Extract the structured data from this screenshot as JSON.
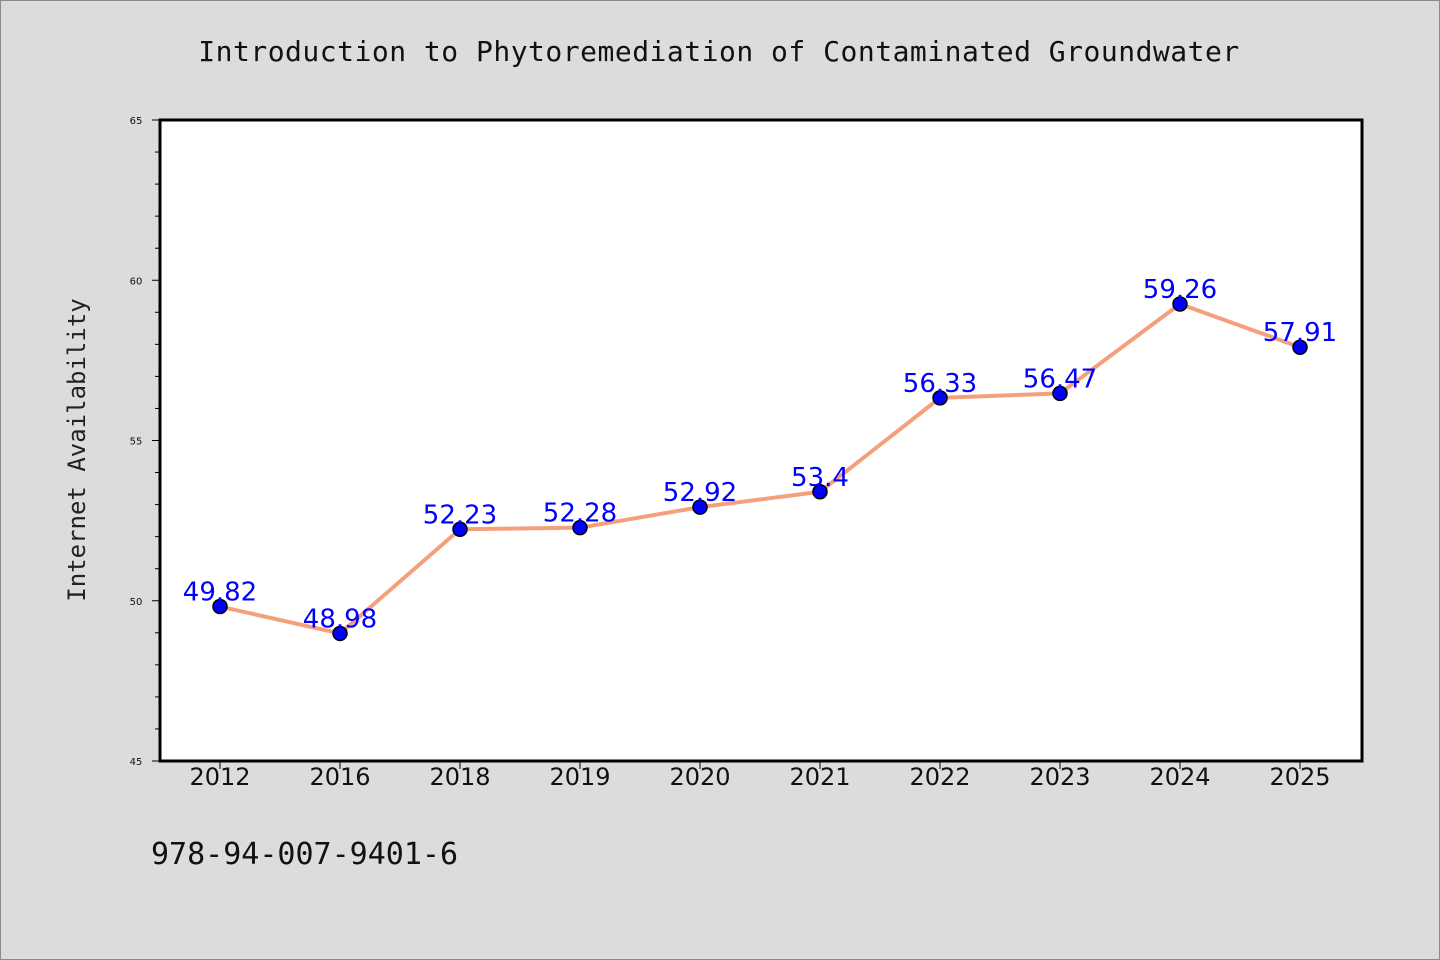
{
  "chart_data": {
    "type": "line",
    "title": "Introduction to Phytoremediation of Contaminated Groundwater",
    "xlabel": "",
    "ylabel": "Internet Availability",
    "categories": [
      "2012",
      "2016",
      "2018",
      "2019",
      "2020",
      "2021",
      "2022",
      "2023",
      "2024",
      "2025"
    ],
    "series": [
      {
        "values": [
          49.82,
          48.98,
          52.23,
          52.28,
          52.92,
          53.4,
          56.33,
          56.47,
          59.26,
          57.91
        ],
        "data_labels": [
          "49.82",
          "48.98",
          "52.23",
          "52.28",
          "52.92",
          "53.4",
          "56.33",
          "56.47",
          "59.26",
          "57.91"
        ]
      }
    ],
    "ylim": [
      45,
      65
    ],
    "y_ticks": [
      "45",
      "50",
      "55",
      "60",
      "65"
    ],
    "grid": false,
    "legend": "none",
    "colors": {
      "line": "#f4a07c",
      "marker_fill": "#0000ff",
      "marker_edge": "#000000",
      "data_label": "#0000ff",
      "background": "#dcdcdc",
      "plot_background": "#ffffff"
    }
  },
  "footer": {
    "isbn": "978-94-007-9401-6"
  }
}
